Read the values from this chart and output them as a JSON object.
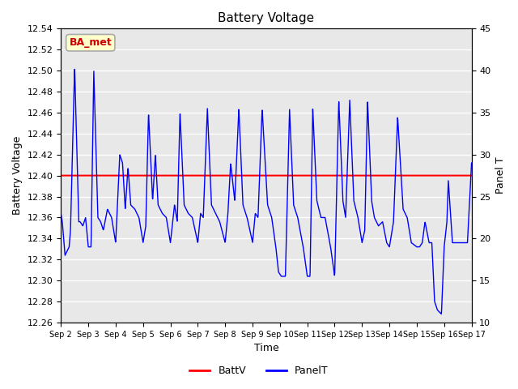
{
  "title": "Battery Voltage",
  "xlabel": "Time",
  "ylabel_left": "Battery Voltage",
  "ylabel_right": "Panel T",
  "ylim_left": [
    12.26,
    12.54
  ],
  "ylim_right": [
    10,
    45
  ],
  "battv_value": 12.4,
  "legend_labels": [
    "BattV",
    "PanelT"
  ],
  "legend_colors": [
    "red",
    "blue"
  ],
  "annotation_text": "BA_met",
  "annotation_bg": "#ffffcc",
  "annotation_border": "#aaaaaa",
  "annotation_text_color": "#cc0000",
  "bg_color": "#e8e8e8",
  "grid_color": "white",
  "x_tick_labels": [
    "Sep 2",
    "Sep 3",
    "Sep 4",
    "Sep 5",
    "Sep 6",
    "Sep 7",
    "Sep 8",
    "Sep 9",
    "Sep 10",
    "Sep 11",
    "Sep 12",
    "Sep 13",
    "Sep 14",
    "Sep 15",
    "Sep 16",
    "Sep 17"
  ],
  "yticks_left": [
    12.26,
    12.28,
    12.3,
    12.32,
    12.34,
    12.36,
    12.38,
    12.4,
    12.42,
    12.44,
    12.46,
    12.48,
    12.5,
    12.52,
    12.54
  ],
  "yticks_right": [
    10,
    15,
    20,
    25,
    30,
    35,
    40,
    45
  ],
  "panel_t_keypoints": [
    [
      0.0,
      23
    ],
    [
      0.05,
      22
    ],
    [
      0.15,
      18
    ],
    [
      0.3,
      19
    ],
    [
      0.35,
      21
    ],
    [
      0.5,
      40.5
    ],
    [
      0.65,
      22
    ],
    [
      0.7,
      22
    ],
    [
      0.8,
      21.5
    ],
    [
      0.9,
      22.5
    ],
    [
      1.0,
      19
    ],
    [
      1.1,
      19
    ],
    [
      1.2,
      40
    ],
    [
      1.35,
      22.5
    ],
    [
      1.45,
      22
    ],
    [
      1.55,
      21
    ],
    [
      1.7,
      23.5
    ],
    [
      1.85,
      22.5
    ],
    [
      2.0,
      19.5
    ],
    [
      2.15,
      30
    ],
    [
      2.25,
      29
    ],
    [
      2.35,
      23.5
    ],
    [
      2.45,
      28.5
    ],
    [
      2.55,
      24
    ],
    [
      2.7,
      23.5
    ],
    [
      2.85,
      22.5
    ],
    [
      3.0,
      19.5
    ],
    [
      3.1,
      21.5
    ],
    [
      3.2,
      35
    ],
    [
      3.35,
      24.5
    ],
    [
      3.45,
      30
    ],
    [
      3.55,
      24
    ],
    [
      3.7,
      23
    ],
    [
      3.85,
      22.5
    ],
    [
      4.0,
      19.5
    ],
    [
      4.1,
      22.5
    ],
    [
      4.15,
      24
    ],
    [
      4.25,
      22
    ],
    [
      4.35,
      35
    ],
    [
      4.5,
      24
    ],
    [
      4.65,
      23
    ],
    [
      4.8,
      22.5
    ],
    [
      5.0,
      19.5
    ],
    [
      5.1,
      23
    ],
    [
      5.2,
      22.5
    ],
    [
      5.35,
      35.5
    ],
    [
      5.5,
      24
    ],
    [
      5.65,
      23
    ],
    [
      5.8,
      22
    ],
    [
      6.0,
      19.5
    ],
    [
      6.1,
      23
    ],
    [
      6.2,
      29
    ],
    [
      6.35,
      24.5
    ],
    [
      6.5,
      35.5
    ],
    [
      6.65,
      24
    ],
    [
      6.8,
      22.5
    ],
    [
      7.0,
      19.5
    ],
    [
      7.1,
      23
    ],
    [
      7.2,
      22.5
    ],
    [
      7.35,
      35.5
    ],
    [
      7.55,
      24
    ],
    [
      7.7,
      22.5
    ],
    [
      7.85,
      19
    ],
    [
      7.95,
      16
    ],
    [
      8.05,
      15.5
    ],
    [
      8.2,
      15.5
    ],
    [
      8.35,
      35.5
    ],
    [
      8.5,
      24
    ],
    [
      8.65,
      22.5
    ],
    [
      8.85,
      19
    ],
    [
      9.0,
      15.5
    ],
    [
      9.1,
      15.5
    ],
    [
      9.2,
      35.5
    ],
    [
      9.35,
      24.5
    ],
    [
      9.5,
      22.5
    ],
    [
      9.65,
      22.5
    ],
    [
      9.85,
      19
    ],
    [
      10.0,
      15.5
    ],
    [
      10.15,
      36.5
    ],
    [
      10.3,
      24.5
    ],
    [
      10.4,
      22.5
    ],
    [
      10.55,
      36.5
    ],
    [
      10.7,
      24.5
    ],
    [
      10.85,
      22.5
    ],
    [
      11.0,
      19.5
    ],
    [
      11.1,
      21
    ],
    [
      11.2,
      36.5
    ],
    [
      11.35,
      24.5
    ],
    [
      11.45,
      22.5
    ],
    [
      11.6,
      21.5
    ],
    [
      11.75,
      22
    ],
    [
      11.9,
      19.5
    ],
    [
      12.0,
      19
    ],
    [
      12.1,
      21
    ],
    [
      12.15,
      22
    ],
    [
      12.3,
      34.5
    ],
    [
      12.5,
      23.5
    ],
    [
      12.65,
      22.5
    ],
    [
      12.8,
      19.5
    ],
    [
      13.0,
      19
    ],
    [
      13.05,
      19
    ],
    [
      13.1,
      19
    ],
    [
      13.2,
      19.5
    ],
    [
      13.3,
      22
    ],
    [
      13.45,
      19.5
    ],
    [
      13.55,
      19.5
    ],
    [
      13.65,
      12.5
    ],
    [
      13.75,
      11.5
    ],
    [
      13.9,
      11
    ],
    [
      14.0,
      19
    ],
    [
      14.1,
      22
    ],
    [
      14.15,
      27
    ],
    [
      14.3,
      19.5
    ],
    [
      14.45,
      19.5
    ],
    [
      14.55,
      19.5
    ],
    [
      14.7,
      19.5
    ],
    [
      14.85,
      19.5
    ],
    [
      15.0,
      29
    ]
  ]
}
